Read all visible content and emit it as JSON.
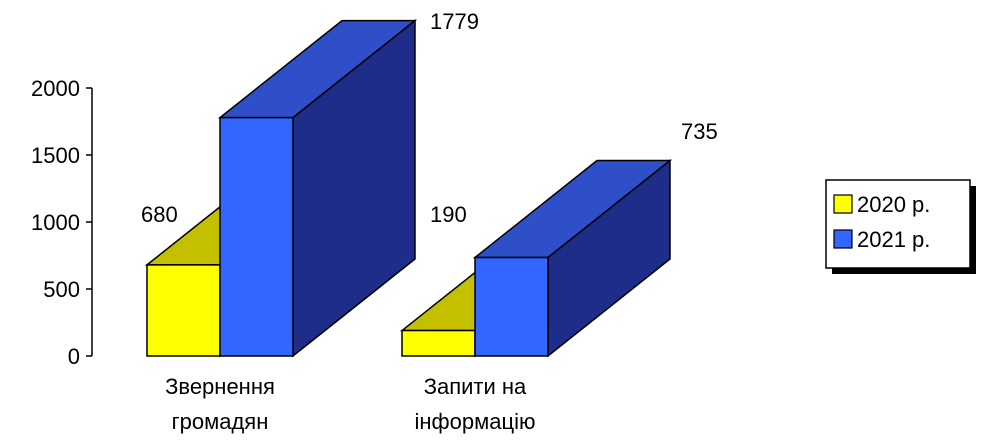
{
  "chart_data": {
    "type": "bar",
    "style": "3d-clustered-column",
    "categories": [
      [
        "Звернення",
        "громадян"
      ],
      [
        "Запити на",
        "інформацію"
      ]
    ],
    "series": [
      {
        "name": "2020 р.",
        "values": [
          680,
          190
        ],
        "color": "#ffff00",
        "side_color": "#b8b400",
        "top_color": "#c4c000"
      },
      {
        "name": "2021 р.",
        "values": [
          1779,
          735
        ],
        "color": "#3366ff",
        "side_color": "#1f2d8a",
        "top_color": "#2e4fc8"
      }
    ],
    "data_labels": [
      "680",
      "190",
      "1779",
      "735"
    ],
    "yticks": [
      "0",
      "500",
      "1000",
      "1500",
      "2000"
    ],
    "ylim": [
      0,
      2000
    ],
    "legend_position": "right",
    "grid": false
  }
}
